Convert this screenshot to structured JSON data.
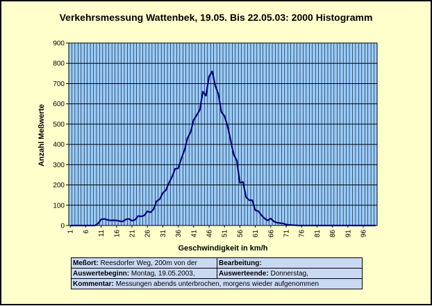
{
  "chart_data": {
    "type": "line",
    "title": "Verkehrsmessung Wattenbek, 19.05. Bis 22.05.03: 2000 Histogramm",
    "xlabel": "Geschwindigkeit in km/h",
    "ylabel": "Anzahl Meßwerte",
    "xlim": [
      1,
      100
    ],
    "ylim": [
      0,
      900
    ],
    "y_ticks": [
      "0",
      "100",
      "200",
      "300",
      "400",
      "500",
      "600",
      "700",
      "800",
      "900"
    ],
    "x_ticks": [
      "1",
      "6",
      "11",
      "16",
      "21",
      "26",
      "31",
      "36",
      "41",
      "46",
      "51",
      "56",
      "61",
      "66",
      "71",
      "76",
      "81",
      "86",
      "91",
      "96"
    ],
    "grid": true,
    "series": [
      {
        "color": "#000080",
        "points": [
          [
            1,
            0
          ],
          [
            2,
            0
          ],
          [
            3,
            0
          ],
          [
            4,
            0
          ],
          [
            5,
            0
          ],
          [
            6,
            0
          ],
          [
            7,
            0
          ],
          [
            8,
            0
          ],
          [
            9,
            0
          ],
          [
            10,
            10
          ],
          [
            11,
            30
          ],
          [
            12,
            33
          ],
          [
            13,
            28
          ],
          [
            14,
            25
          ],
          [
            15,
            26
          ],
          [
            16,
            25
          ],
          [
            17,
            22
          ],
          [
            18,
            20
          ],
          [
            19,
            30
          ],
          [
            20,
            33
          ],
          [
            21,
            24
          ],
          [
            22,
            28
          ],
          [
            23,
            47
          ],
          [
            24,
            45
          ],
          [
            25,
            50
          ],
          [
            26,
            70
          ],
          [
            27,
            65
          ],
          [
            28,
            80
          ],
          [
            29,
            120
          ],
          [
            30,
            130
          ],
          [
            31,
            160
          ],
          [
            32,
            175
          ],
          [
            33,
            210
          ],
          [
            34,
            240
          ],
          [
            35,
            280
          ],
          [
            36,
            282
          ],
          [
            37,
            330
          ],
          [
            38,
            370
          ],
          [
            39,
            430
          ],
          [
            40,
            460
          ],
          [
            41,
            520
          ],
          [
            42,
            545
          ],
          [
            43,
            570
          ],
          [
            44,
            660
          ],
          [
            45,
            640
          ],
          [
            46,
            735
          ],
          [
            47,
            760
          ],
          [
            48,
            690
          ],
          [
            49,
            650
          ],
          [
            50,
            560
          ],
          [
            51,
            540
          ],
          [
            52,
            490
          ],
          [
            53,
            420
          ],
          [
            54,
            350
          ],
          [
            55,
            320
          ],
          [
            56,
            210
          ],
          [
            57,
            215
          ],
          [
            58,
            140
          ],
          [
            59,
            125
          ],
          [
            60,
            125
          ],
          [
            61,
            75
          ],
          [
            62,
            70
          ],
          [
            63,
            50
          ],
          [
            64,
            35
          ],
          [
            65,
            25
          ],
          [
            66,
            35
          ],
          [
            67,
            20
          ],
          [
            68,
            14
          ],
          [
            69,
            12
          ],
          [
            70,
            10
          ],
          [
            71,
            5
          ],
          [
            72,
            3
          ],
          [
            73,
            2
          ],
          [
            74,
            1
          ],
          [
            75,
            0
          ],
          [
            76,
            0
          ],
          [
            77,
            0
          ],
          [
            78,
            0
          ],
          [
            79,
            0
          ],
          [
            80,
            0
          ],
          [
            81,
            0
          ],
          [
            82,
            0
          ],
          [
            83,
            0
          ],
          [
            84,
            0
          ],
          [
            85,
            0
          ],
          [
            86,
            0
          ],
          [
            87,
            0
          ],
          [
            88,
            0
          ],
          [
            89,
            0
          ],
          [
            90,
            0
          ],
          [
            91,
            0
          ],
          [
            92,
            0
          ],
          [
            93,
            0
          ],
          [
            94,
            0
          ],
          [
            95,
            0
          ],
          [
            96,
            0
          ],
          [
            97,
            0
          ],
          [
            98,
            0
          ],
          [
            99,
            0
          ],
          [
            100,
            0
          ]
        ]
      }
    ]
  },
  "info": {
    "messort_label": "Meßort:",
    "messort_value": "Reesdorfer Weg, 200m von der",
    "bearbeitung_label": "Bearbeitung:",
    "bearbeitung_value": "",
    "auswertebeginn_label": "Auswertebeginn:",
    "auswertebeginn_value": "Montag, 19.05.2003,",
    "auswerteende_label": "Auswerteende:",
    "auswerteende_value": "Donnerstag,",
    "kommentar_label": "Kommentar:",
    "kommentar_value": "Messungen abends unterbrochen, morgens wieder aufgenommen"
  },
  "colors": {
    "plot_background": "#99ccff",
    "page_background": "#ffffcc",
    "line": "#000080",
    "table_background": "#c9d9f2"
  }
}
